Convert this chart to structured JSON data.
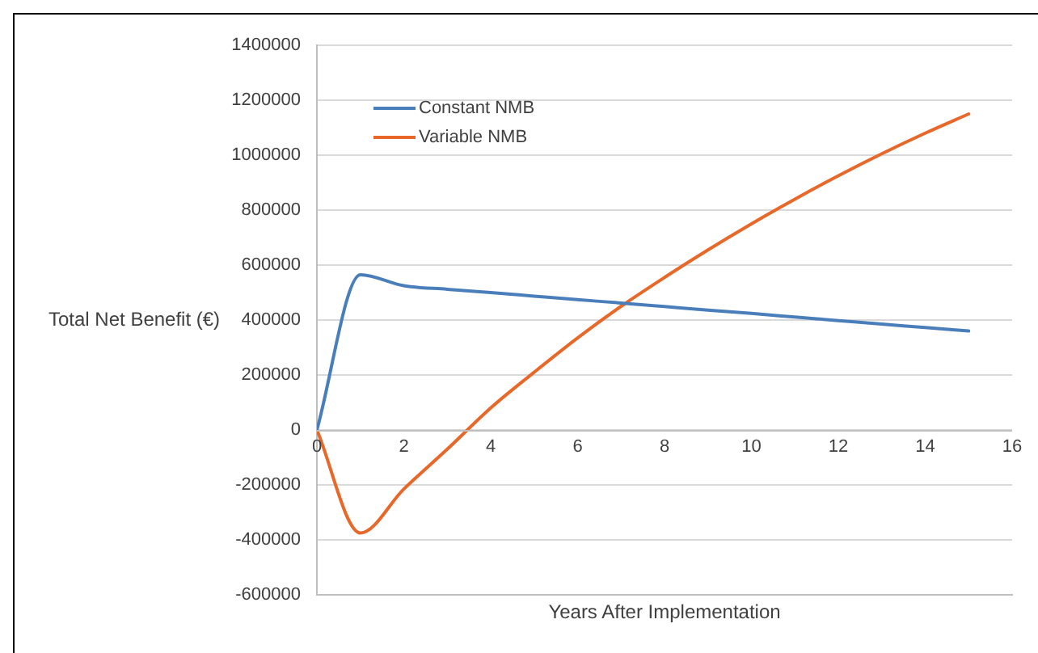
{
  "chart_data": {
    "type": "line",
    "xlabel": "Years After Implementation",
    "ylabel": "Total Net Benefit (€)",
    "xlim": [
      0,
      16
    ],
    "xticks": [
      0,
      2,
      4,
      6,
      8,
      10,
      12,
      14,
      16
    ],
    "ylim": [
      -600000,
      1400000
    ],
    "yticks": [
      -600000,
      -400000,
      -200000,
      0,
      200000,
      400000,
      600000,
      800000,
      1000000,
      1200000,
      1400000
    ],
    "grid": "y",
    "legend": "top left",
    "marker": "none",
    "line_style": "solid",
    "x": [
      0,
      1,
      2,
      3,
      4,
      5,
      6,
      7,
      8,
      9,
      10,
      11,
      12,
      13,
      14,
      15
    ],
    "series": [
      {
        "name": "Constant NMB",
        "color": "#4a7ebb",
        "values": [
          0,
          565000,
          525000,
          512000,
          500000,
          487000,
          474000,
          462000,
          449000,
          436000,
          424000,
          411000,
          398000,
          385000,
          373000,
          360000
        ]
      },
      {
        "name": "Variable NMB",
        "color": "#e8682a",
        "values": [
          0,
          -375000,
          -215000,
          -70000,
          80000,
          210000,
          335000,
          450000,
          555000,
          655000,
          750000,
          840000,
          925000,
          1005000,
          1080000,
          1150000
        ]
      }
    ]
  }
}
